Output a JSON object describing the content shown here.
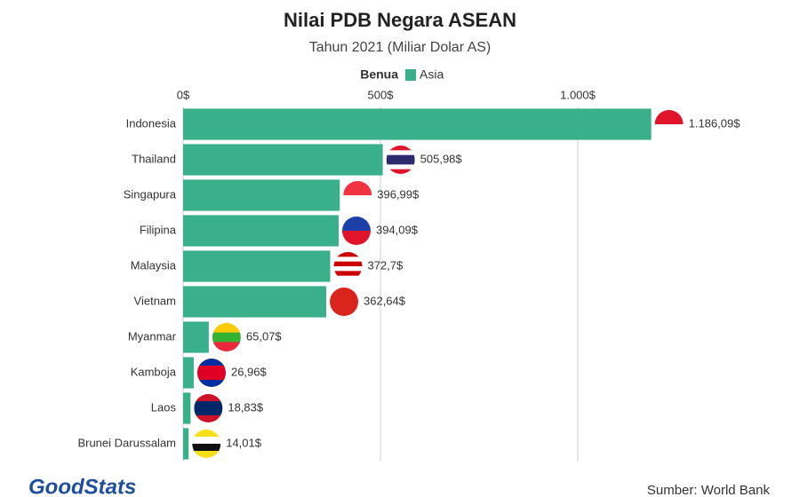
{
  "chart_data": {
    "type": "bar",
    "orientation": "horizontal",
    "title": "Nilai PDB Negara ASEAN",
    "subtitle": "Tahun 2021 (Miliar Dolar AS)",
    "legend_title": "Benua",
    "categories": [
      "Indonesia",
      "Thailand",
      "Singapura",
      "Filipina",
      "Malaysia",
      "Vietnam",
      "Myanmar",
      "Kamboja",
      "Laos",
      "Brunei Darussalam"
    ],
    "series": [
      {
        "name": "Asia",
        "color": "#3ab08a",
        "values": [
          1186.09,
          505.98,
          396.99,
          394.09,
          372.7,
          362.64,
          65.07,
          26.96,
          18.83,
          14.01
        ],
        "value_labels": [
          "1.186,09$",
          "505,98$",
          "396,99$",
          "394,09$",
          "372,7$",
          "362,64$",
          "65,07$",
          "26,96$",
          "18,83$",
          "14,01$"
        ]
      }
    ],
    "xlim": [
      0,
      1500
    ],
    "xticks": [
      {
        "value": 0,
        "label": "0$"
      },
      {
        "value": 500,
        "label": "500$"
      },
      {
        "value": 1000,
        "label": "1.000$"
      }
    ],
    "grid": true,
    "source": "Sumber: World Bank",
    "logo": "GoodStats"
  }
}
